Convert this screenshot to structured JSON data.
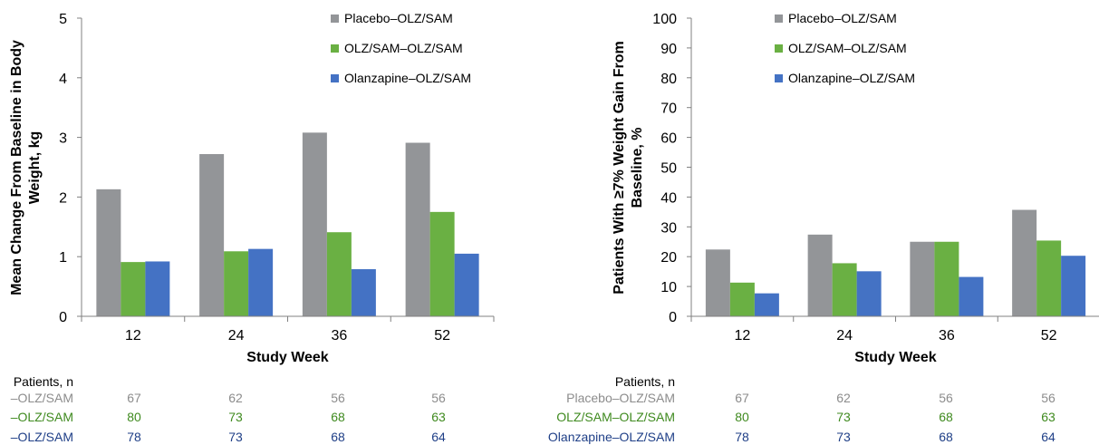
{
  "colors": {
    "placebo": "#939598",
    "olz_sam": "#6ab043",
    "olanzapine": "#4472c4",
    "axis": "#808080"
  },
  "chart_data": [
    {
      "type": "bar",
      "categories": [
        "12",
        "24",
        "36",
        "52"
      ],
      "series": [
        {
          "name": "Placebo–OLZ/SAM",
          "values": [
            2.13,
            2.72,
            3.08,
            2.91
          ]
        },
        {
          "name": "OLZ/SAM–OLZ/SAM",
          "values": [
            0.91,
            1.09,
            1.41,
            1.75
          ]
        },
        {
          "name": "Olanzapine–OLZ/SAM",
          "values": [
            0.92,
            1.13,
            0.79,
            1.05
          ]
        }
      ],
      "xlabel": "Study Week",
      "ylabel_line1": "Mean Change From Baseline in Body",
      "ylabel_line2": "Weight, kg",
      "ylim": [
        0,
        5
      ],
      "yticks": [
        "0",
        "1",
        "2",
        "3",
        "4",
        "5"
      ],
      "legend_position": "top-right",
      "table": {
        "header": "Patients, n",
        "rows": [
          {
            "label": "–OLZ/SAM",
            "values": [
              "67",
              "62",
              "56",
              "56"
            ]
          },
          {
            "label": "–OLZ/SAM",
            "values": [
              "80",
              "73",
              "68",
              "63"
            ]
          },
          {
            "label": "–OLZ/SAM",
            "values": [
              "78",
              "73",
              "68",
              "64"
            ]
          }
        ]
      }
    },
    {
      "type": "bar",
      "categories": [
        "12",
        "24",
        "36",
        "52"
      ],
      "series": [
        {
          "name": "Placebo–OLZ/SAM",
          "values": [
            22.4,
            27.4,
            25.0,
            35.7
          ]
        },
        {
          "name": "OLZ/SAM–OLZ/SAM",
          "values": [
            11.3,
            17.8,
            25.0,
            25.4
          ]
        },
        {
          "name": "Olanzapine–OLZ/SAM",
          "values": [
            7.7,
            15.1,
            13.2,
            20.3
          ]
        }
      ],
      "xlabel": "Study Week",
      "ylabel_line1": "Patients With ≥7% Weight Gain From",
      "ylabel_line2": "Baseline, %",
      "ylim": [
        0,
        100
      ],
      "yticks": [
        "0",
        "10",
        "20",
        "30",
        "40",
        "50",
        "60",
        "70",
        "80",
        "90",
        "100"
      ],
      "legend_position": "top-right",
      "table": {
        "header": "Patients, n",
        "rows": [
          {
            "label": "Placebo–OLZ/SAM",
            "values": [
              "67",
              "62",
              "56",
              "56"
            ]
          },
          {
            "label": "OLZ/SAM–OLZ/SAM",
            "values": [
              "80",
              "73",
              "68",
              "63"
            ]
          },
          {
            "label": "Olanzapine–OLZ/SAM",
            "values": [
              "78",
              "73",
              "68",
              "64"
            ]
          }
        ]
      }
    }
  ]
}
